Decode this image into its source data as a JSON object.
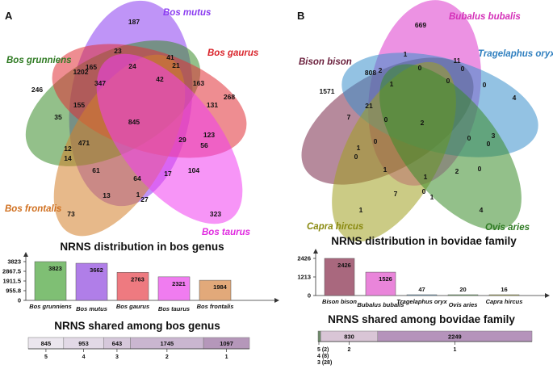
{
  "panels": {
    "A": "A",
    "B": "B"
  },
  "chart_data": [
    {
      "type": "venn",
      "panel": "A",
      "sets": [
        {
          "name": "Bos mutus",
          "color": "#8b3cf0"
        },
        {
          "name": "Bos grunniens",
          "color": "#3a8c2a"
        },
        {
          "name": "Bos gaurus",
          "color": "#e03036"
        },
        {
          "name": "Bos frontalis",
          "color": "#d4802a"
        },
        {
          "name": "Bos taurus",
          "color": "#f03ef0"
        }
      ],
      "region_values": [
        "187",
        "246",
        "268",
        "73",
        "323",
        "23",
        "24",
        "41",
        "21",
        "42",
        "163",
        "131",
        "347",
        "155",
        "1202",
        "165",
        "35",
        "845",
        "471",
        "12",
        "14",
        "61",
        "13",
        "64",
        "17",
        "1",
        "27",
        "104",
        "29",
        "56",
        "123"
      ]
    },
    {
      "type": "bar",
      "panel": "A",
      "title": "NRNS distribution in bos genus",
      "categories": [
        "Bos grunniens",
        "Bos mutus",
        "Bos gaurus",
        "Bos taurus",
        "Bos frontalis"
      ],
      "values": [
        3823,
        3662,
        2763,
        2321,
        1984
      ],
      "value_labels": [
        "3823",
        "3662",
        "2763",
        "2321",
        "1984"
      ],
      "colors": [
        "#7fbf74",
        "#b07ee8",
        "#ee7a80",
        "#f07cf0",
        "#e2a97a"
      ],
      "yticks": [
        "3823",
        "2867.5",
        "1911.5",
        "955.8",
        "0"
      ],
      "ylim": [
        0,
        3823
      ]
    },
    {
      "type": "stacked-bar",
      "panel": "A",
      "title": "NRNS shared among bos genus",
      "segments": [
        {
          "value": 845,
          "label": "845",
          "tick": "5",
          "color": "#ebe6ee"
        },
        {
          "value": 953,
          "label": "953",
          "tick": "4",
          "color": "#e2d9e6"
        },
        {
          "value": 643,
          "label": "643",
          "tick": "3",
          "color": "#d6c8db"
        },
        {
          "value": 1745,
          "label": "1745",
          "tick": "2",
          "color": "#cab6d0"
        },
        {
          "value": 1097,
          "label": "1097",
          "tick": "1",
          "color": "#b597ba"
        }
      ]
    },
    {
      "type": "venn",
      "panel": "B",
      "sets": [
        {
          "name": "Bubalus bubalis",
          "color": "#e04ad0"
        },
        {
          "name": "Bison bison",
          "color": "#7a2a4a"
        },
        {
          "name": "Tragelaphus oryx",
          "color": "#3a8fcc"
        },
        {
          "name": "Capra hircus",
          "color": "#a0a020"
        },
        {
          "name": "Ovis aries",
          "color": "#3a8c2a"
        }
      ],
      "region_values": [
        "669",
        "1571",
        "4",
        "1",
        "4",
        "1",
        "11",
        "0",
        "808",
        "2",
        "1",
        "0",
        "0",
        "0",
        "0",
        "21",
        "7",
        "2",
        "1",
        "0",
        "0",
        "0",
        "0",
        "3",
        "1",
        "7",
        "1",
        "2",
        "0",
        "0",
        "1"
      ]
    },
    {
      "type": "bar",
      "panel": "B",
      "title": "NRNS distribution in bovidae family",
      "categories": [
        "Bison bison",
        "Bubalus bubalis",
        "Tragelaphus oryx",
        "Ovis aries",
        "Capra hircus"
      ],
      "values": [
        2426,
        1526,
        47,
        20,
        16
      ],
      "value_labels": [
        "2426",
        "1526",
        "47",
        "20",
        "16"
      ],
      "colors": [
        "#a9687e",
        "#e985da",
        "#7fb7e0",
        "#7fbf74",
        "#c8c860"
      ],
      "yticks": [
        "2426",
        "1213",
        "0"
      ],
      "ylim": [
        0,
        2426
      ]
    },
    {
      "type": "stacked-bar",
      "panel": "B",
      "title": "NRNS shared among bovidae family",
      "segments": [
        {
          "value": 38,
          "label": "",
          "tick": "",
          "color": "#6e8a6a"
        },
        {
          "value": 830,
          "label": "830",
          "tick": "2",
          "color": "#d9c5d6"
        },
        {
          "value": 2249,
          "label": "2249",
          "tick": "1",
          "color": "#b593bb"
        }
      ],
      "footnotes": [
        "5 (2)",
        "4 (8)",
        "3 (28)"
      ]
    }
  ]
}
